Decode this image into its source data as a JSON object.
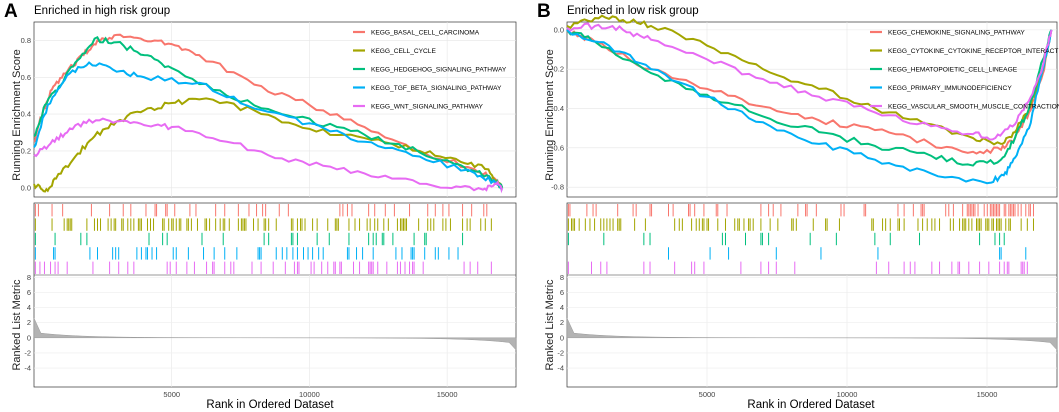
{
  "chart_data": [
    {
      "type": "line",
      "panel_label": "A",
      "title": "Enriched in high risk group",
      "ylabel_top": "Running Enrichment Score",
      "ylabel_bottom": "Ranked List Metric",
      "xlabel": "Rank in Ordered Dataset",
      "xlim": [
        0,
        17500
      ],
      "ylim_es": [
        -0.05,
        0.9
      ],
      "ylim_metric": [
        -6.5,
        8.3
      ],
      "x_ticks": [
        5000,
        10000,
        15000
      ],
      "es_ticks": [
        0.0,
        0.2,
        0.4,
        0.6,
        0.8
      ],
      "metric_ticks": [
        -4,
        -2,
        0,
        2,
        4,
        6,
        8
      ],
      "x_tick_labels": [
        "5000",
        "10000",
        "15000"
      ],
      "es_tick_labels": [
        "0.0",
        "0.2",
        "0.4",
        "0.6",
        "0.8"
      ],
      "metric_tick_labels": [
        "-4",
        "-2",
        "0",
        "2",
        "4",
        "6",
        "8"
      ],
      "series": [
        {
          "name": "KEGG_BASAL_CELL_CARCINOMA",
          "color": "#F8766D",
          "es_points": [
            [
              0,
              0.25
            ],
            [
              300,
              0.4
            ],
            [
              700,
              0.55
            ],
            [
              1200,
              0.63
            ],
            [
              1800,
              0.72
            ],
            [
              2300,
              0.8
            ],
            [
              3000,
              0.83
            ],
            [
              4000,
              0.8
            ],
            [
              5000,
              0.78
            ],
            [
              6000,
              0.72
            ],
            [
              8000,
              0.56
            ],
            [
              10000,
              0.45
            ],
            [
              12000,
              0.33
            ],
            [
              14000,
              0.2
            ],
            [
              16000,
              0.1
            ],
            [
              16800,
              0.04
            ],
            [
              17000,
              0.0
            ]
          ],
          "hit_density": 0.3
        },
        {
          "name": "KEGG_CELL_CYCLE",
          "color": "#A3A500",
          "es_points": [
            [
              0,
              0.02
            ],
            [
              400,
              -0.02
            ],
            [
              800,
              0.05
            ],
            [
              1500,
              0.17
            ],
            [
              2200,
              0.28
            ],
            [
              3000,
              0.36
            ],
            [
              4000,
              0.42
            ],
            [
              5000,
              0.46
            ],
            [
              6000,
              0.48
            ],
            [
              8000,
              0.42
            ],
            [
              10000,
              0.32
            ],
            [
              12000,
              0.27
            ],
            [
              14000,
              0.2
            ],
            [
              15500,
              0.14
            ],
            [
              16500,
              0.1
            ],
            [
              17000,
              0.0
            ]
          ],
          "hit_density": 0.55
        },
        {
          "name": "KEGG_HEDGEHOG_SIGNALING_PATHWAY",
          "color": "#00BF7D",
          "es_points": [
            [
              0,
              0.28
            ],
            [
              400,
              0.45
            ],
            [
              900,
              0.55
            ],
            [
              1500,
              0.68
            ],
            [
              2200,
              0.81
            ],
            [
              3000,
              0.79
            ],
            [
              4000,
              0.72
            ],
            [
              5000,
              0.65
            ],
            [
              7000,
              0.5
            ],
            [
              9000,
              0.4
            ],
            [
              11000,
              0.33
            ],
            [
              13000,
              0.24
            ],
            [
              15000,
              0.15
            ],
            [
              16000,
              0.09
            ],
            [
              16700,
              0.04
            ],
            [
              17000,
              0.0
            ]
          ],
          "hit_density": 0.18
        },
        {
          "name": "KEGG_TGF_BETA_SIGNALING_PATHWAY",
          "color": "#00B0F6",
          "es_points": [
            [
              0,
              0.22
            ],
            [
              500,
              0.45
            ],
            [
              1200,
              0.61
            ],
            [
              2000,
              0.68
            ],
            [
              3000,
              0.63
            ],
            [
              4000,
              0.6
            ],
            [
              6000,
              0.57
            ],
            [
              8000,
              0.43
            ],
            [
              10000,
              0.35
            ],
            [
              12000,
              0.25
            ],
            [
              14000,
              0.17
            ],
            [
              16000,
              0.08
            ],
            [
              16800,
              0.02
            ],
            [
              17000,
              0.0
            ]
          ],
          "hit_density": 0.28
        },
        {
          "name": "KEGG_WNT_SIGNALING_PATHWAY",
          "color": "#E76BF3",
          "es_points": [
            [
              0,
              0.18
            ],
            [
              600,
              0.24
            ],
            [
              1200,
              0.3
            ],
            [
              2000,
              0.37
            ],
            [
              3000,
              0.36
            ],
            [
              4000,
              0.34
            ],
            [
              5000,
              0.33
            ],
            [
              7000,
              0.25
            ],
            [
              9000,
              0.16
            ],
            [
              11000,
              0.1
            ],
            [
              13000,
              0.05
            ],
            [
              15000,
              0.0
            ],
            [
              16300,
              -0.01
            ],
            [
              16800,
              0.02
            ],
            [
              17000,
              0.0
            ]
          ],
          "hit_density": 0.35
        }
      ]
    },
    {
      "type": "line",
      "panel_label": "B",
      "title": "Enriched in low risk group",
      "ylabel_top": "Running Enrichment Score",
      "ylabel_bottom": "Ranked List Metric",
      "xlabel": "Rank in Ordered Dataset",
      "xlim": [
        0,
        17500
      ],
      "ylim_es": [
        -0.85,
        0.04
      ],
      "ylim_metric": [
        -6.5,
        8.3
      ],
      "x_ticks": [
        5000,
        10000,
        15000
      ],
      "es_ticks": [
        -0.8,
        -0.6,
        -0.4,
        -0.2,
        0.0
      ],
      "metric_ticks": [
        -4,
        -2,
        0,
        2,
        4,
        6,
        8
      ],
      "x_tick_labels": [
        "5000",
        "10000",
        "15000"
      ],
      "es_tick_labels": [
        "-0.8",
        "-0.6",
        "-0.4",
        "-0.2",
        "0.0"
      ],
      "metric_tick_labels": [
        "-4",
        "-2",
        "0",
        "2",
        "4",
        "6",
        "8"
      ],
      "series": [
        {
          "name": "KEGG_CHEMOKINE_SIGNALING_PATHWAY",
          "color": "#F8766D",
          "es_points": [
            [
              0,
              0.0
            ],
            [
              1000,
              -0.06
            ],
            [
              3000,
              -0.2
            ],
            [
              5000,
              -0.3
            ],
            [
              7000,
              -0.39
            ],
            [
              9000,
              -0.46
            ],
            [
              11000,
              -0.51
            ],
            [
              13000,
              -0.58
            ],
            [
              14500,
              -0.62
            ],
            [
              15500,
              -0.61
            ],
            [
              16000,
              -0.55
            ],
            [
              16500,
              -0.42
            ],
            [
              17000,
              -0.22
            ],
            [
              17300,
              0.0
            ]
          ],
          "hit_density": 0.55
        },
        {
          "name": "KEGG_CYTOKINE_CYTOKINE_RECEPTOR_INTERACTION",
          "color": "#A3A500",
          "es_points": [
            [
              0,
              0.02
            ],
            [
              1000,
              0.06
            ],
            [
              2000,
              0.05
            ],
            [
              3000,
              0.02
            ],
            [
              5000,
              -0.08
            ],
            [
              7000,
              -0.2
            ],
            [
              9000,
              -0.3
            ],
            [
              11000,
              -0.4
            ],
            [
              13000,
              -0.48
            ],
            [
              14500,
              -0.55
            ],
            [
              15500,
              -0.58
            ],
            [
              16000,
              -0.52
            ],
            [
              16500,
              -0.4
            ],
            [
              17000,
              -0.2
            ],
            [
              17300,
              0.0
            ]
          ],
          "hit_density": 0.6
        },
        {
          "name": "KEGG_HEMATOPOIETIC_CELL_LINEAGE",
          "color": "#00BF7D",
          "es_points": [
            [
              0,
              0.0
            ],
            [
              1000,
              -0.06
            ],
            [
              3000,
              -0.22
            ],
            [
              5000,
              -0.33
            ],
            [
              7000,
              -0.44
            ],
            [
              9000,
              -0.52
            ],
            [
              11000,
              -0.59
            ],
            [
              13000,
              -0.64
            ],
            [
              14500,
              -0.69
            ],
            [
              15500,
              -0.66
            ],
            [
              16000,
              -0.55
            ],
            [
              16500,
              -0.4
            ],
            [
              17000,
              -0.15
            ],
            [
              17300,
              0.0
            ]
          ],
          "hit_density": 0.16
        },
        {
          "name": "KEGG_PRIMARY_IMMUNODEFICIENCY",
          "color": "#00B0F6",
          "es_points": [
            [
              0,
              0.0
            ],
            [
              1500,
              -0.08
            ],
            [
              3000,
              -0.2
            ],
            [
              5000,
              -0.34
            ],
            [
              7000,
              -0.47
            ],
            [
              9000,
              -0.58
            ],
            [
              11000,
              -0.66
            ],
            [
              13000,
              -0.73
            ],
            [
              15000,
              -0.78
            ],
            [
              15600,
              -0.74
            ],
            [
              16000,
              -0.65
            ],
            [
              16500,
              -0.5
            ],
            [
              17000,
              -0.2
            ],
            [
              17300,
              0.0
            ]
          ],
          "hit_density": 0.1
        },
        {
          "name": "KEGG_VASCULAR_SMOOTH_MUSCLE_CONTRACTION",
          "color": "#E76BF3",
          "es_points": [
            [
              0,
              0.01
            ],
            [
              1000,
              0.02
            ],
            [
              2000,
              0.0
            ],
            [
              3000,
              -0.05
            ],
            [
              5000,
              -0.15
            ],
            [
              7000,
              -0.25
            ],
            [
              9000,
              -0.34
            ],
            [
              11000,
              -0.42
            ],
            [
              13000,
              -0.49
            ],
            [
              14500,
              -0.53
            ],
            [
              15300,
              -0.55
            ],
            [
              16000,
              -0.48
            ],
            [
              16500,
              -0.36
            ],
            [
              17000,
              -0.18
            ],
            [
              17300,
              0.0
            ]
          ],
          "hit_density": 0.3
        }
      ]
    }
  ]
}
